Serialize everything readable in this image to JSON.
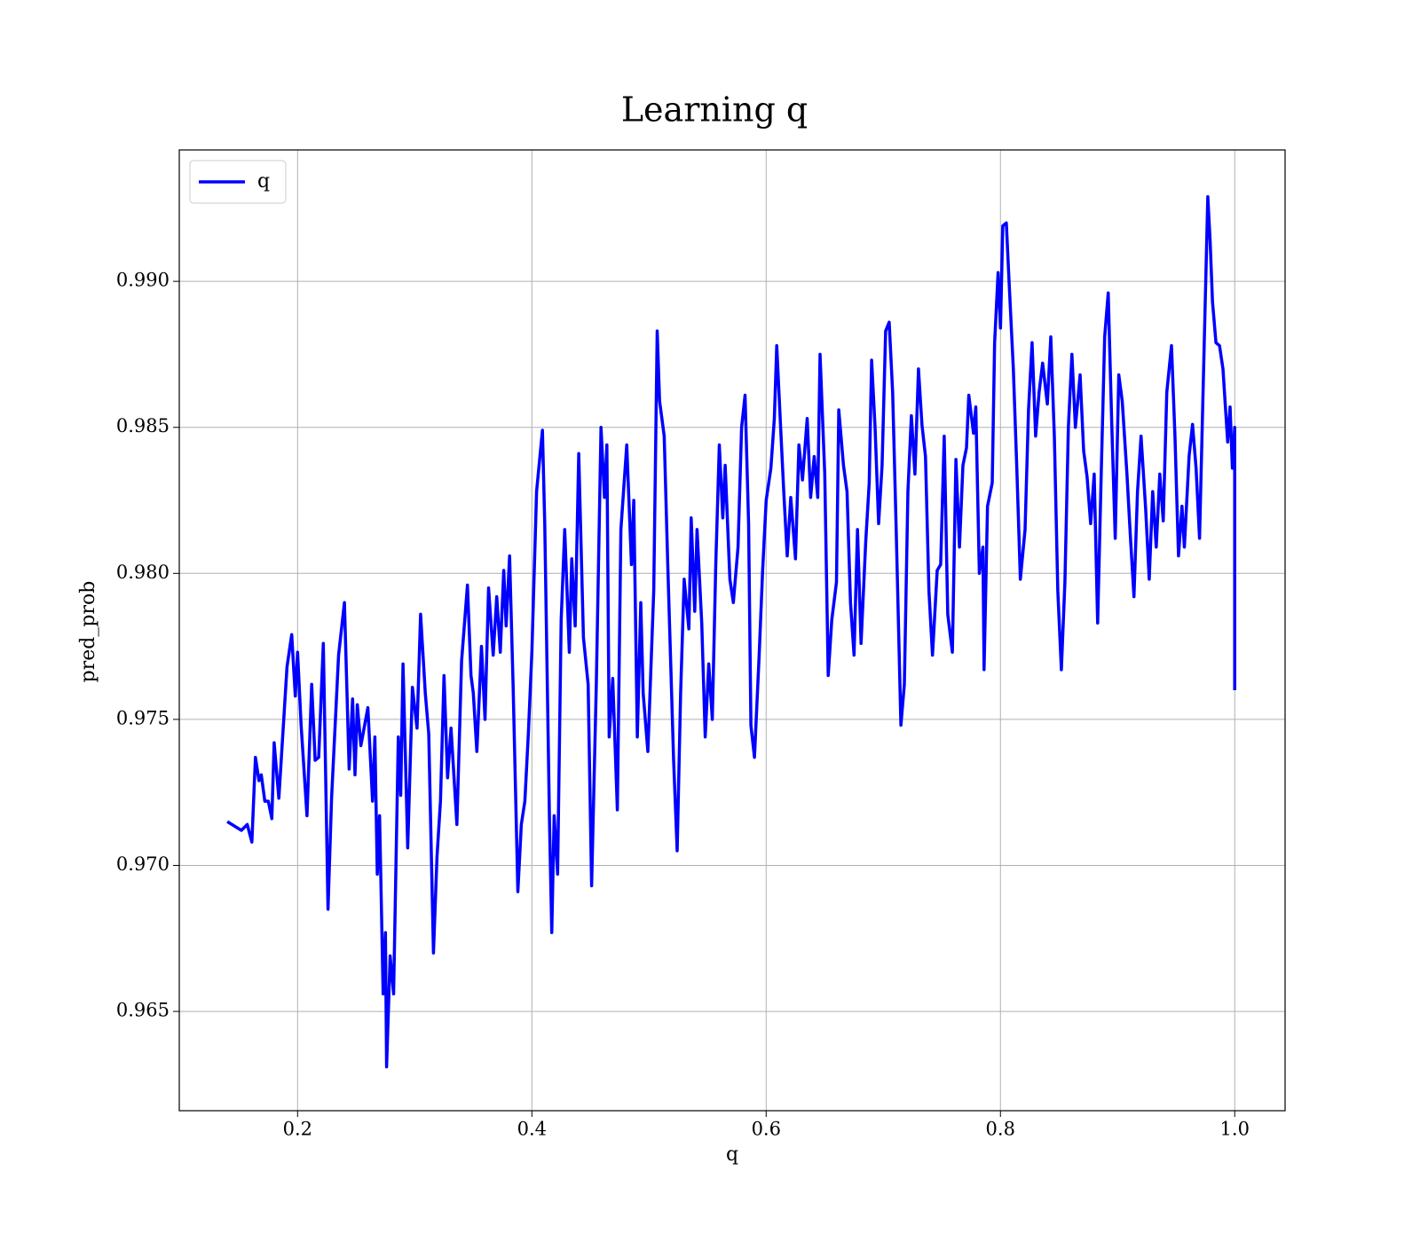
{
  "chart_data": {
    "type": "line",
    "title": "Learning q",
    "x_label": "q",
    "y_label": "pred_prob",
    "xlim": [
      0.099,
      1.043
    ],
    "ylim": [
      0.9616,
      0.9945
    ],
    "xticks": [
      0.2,
      0.4,
      0.6,
      0.8,
      {
        "value": 1,
        "label": "1.0"
      }
    ],
    "yticks": [
      0.965,
      {
        "value": 0.97,
        "label": "0.970"
      },
      0.975,
      {
        "value": 0.98,
        "label": "0.980"
      },
      0.985,
      {
        "value": 0.99,
        "label": "0.990"
      }
    ],
    "grid": true,
    "legend": "upper left",
    "x": [
      0.14,
      0.152,
      0.157,
      0.161,
      0.164,
      0.167,
      0.169,
      0.172,
      0.175,
      0.178,
      0.18,
      0.184,
      0.191,
      0.195,
      0.198,
      0.2,
      0.203,
      0.208,
      0.212,
      0.215,
      0.218,
      0.222,
      0.226,
      0.229,
      0.235,
      0.24,
      0.244,
      0.247,
      0.249,
      0.251,
      0.254,
      0.26,
      0.264,
      0.266,
      0.268,
      0.27,
      0.273,
      0.275,
      0.276,
      0.279,
      0.282,
      0.286,
      0.288,
      0.29,
      0.294,
      0.298,
      0.302,
      0.305,
      0.309,
      0.312,
      0.316,
      0.319,
      0.322,
      0.325,
      0.328,
      0.331,
      0.336,
      0.34,
      0.345,
      0.348,
      0.35,
      0.353,
      0.357,
      0.36,
      0.363,
      0.367,
      0.37,
      0.373,
      0.376,
      0.378,
      0.381,
      0.384,
      0.388,
      0.391,
      0.394,
      0.397,
      0.4,
      0.404,
      0.409,
      0.411,
      0.415,
      0.417,
      0.419,
      0.422,
      0.425,
      0.428,
      0.432,
      0.434,
      0.437,
      0.44,
      0.444,
      0.448,
      0.451,
      0.455,
      0.459,
      0.462,
      0.464,
      0.466,
      0.469,
      0.473,
      0.476,
      0.481,
      0.485,
      0.487,
      0.49,
      0.493,
      0.495,
      0.499,
      0.504,
      0.507,
      0.509,
      0.513,
      0.516,
      0.521,
      0.524,
      0.527,
      0.53,
      0.534,
      0.536,
      0.539,
      0.541,
      0.545,
      0.548,
      0.551,
      0.554,
      0.557,
      0.56,
      0.563,
      0.565,
      0.569,
      0.572,
      0.576,
      0.579,
      0.582,
      0.585,
      0.587,
      0.59,
      0.594,
      0.597,
      0.6,
      0.604,
      0.607,
      0.609,
      0.612,
      0.615,
      0.618,
      0.621,
      0.625,
      0.628,
      0.631,
      0.635,
      0.638,
      0.641,
      0.644,
      0.646,
      0.65,
      0.653,
      0.656,
      0.66,
      0.662,
      0.666,
      0.669,
      0.672,
      0.675,
      0.678,
      0.681,
      0.685,
      0.688,
      0.69,
      0.693,
      0.696,
      0.699,
      0.702,
      0.705,
      0.708,
      0.711,
      0.715,
      0.718,
      0.721,
      0.724,
      0.727,
      0.73,
      0.733,
      0.736,
      0.739,
      0.742,
      0.746,
      0.749,
      0.752,
      0.755,
      0.759,
      0.762,
      0.765,
      0.768,
      0.771,
      0.773,
      0.777,
      0.779,
      0.782,
      0.785,
      0.786,
      0.789,
      0.793,
      0.795,
      0.798,
      0.8,
      0.802,
      0.805,
      0.807,
      0.811,
      0.814,
      0.817,
      0.821,
      0.824,
      0.827,
      0.83,
      0.833,
      0.836,
      0.84,
      0.843,
      0.846,
      0.849,
      0.852,
      0.855,
      0.858,
      0.861,
      0.864,
      0.868,
      0.871,
      0.874,
      0.877,
      0.88,
      0.883,
      0.886,
      0.889,
      0.892,
      0.895,
      0.898,
      0.901,
      0.904,
      0.908,
      0.911,
      0.914,
      0.917,
      0.92,
      0.924,
      0.927,
      0.93,
      0.933,
      0.936,
      0.939,
      0.942,
      0.946,
      0.949,
      0.952,
      0.955,
      0.957,
      0.961,
      0.964,
      0.967,
      0.97,
      0.974,
      0.977,
      0.979,
      0.981,
      0.984,
      0.987,
      0.99,
      0.994,
      0.996,
      0.998,
      1.0,
      1.0
    ],
    "series": [
      {
        "name": "q",
        "color": "#0000ff",
        "values": [
          0.9715,
          0.9712,
          0.9714,
          0.9708,
          0.9737,
          0.9729,
          0.9731,
          0.9722,
          0.9722,
          0.9716,
          0.9742,
          0.9723,
          0.9768,
          0.9779,
          0.9758,
          0.9773,
          0.9748,
          0.9717,
          0.9762,
          0.9736,
          0.9737,
          0.9776,
          0.9685,
          0.9723,
          0.9772,
          0.979,
          0.9733,
          0.9757,
          0.9731,
          0.9755,
          0.9741,
          0.9754,
          0.9722,
          0.9744,
          0.9697,
          0.9717,
          0.9656,
          0.9677,
          0.9631,
          0.9669,
          0.9656,
          0.9744,
          0.9724,
          0.9769,
          0.9706,
          0.9761,
          0.9747,
          0.9786,
          0.9759,
          0.9745,
          0.967,
          0.9703,
          0.9722,
          0.9765,
          0.973,
          0.9747,
          0.9714,
          0.977,
          0.9796,
          0.9765,
          0.9759,
          0.9739,
          0.9775,
          0.975,
          0.9795,
          0.9772,
          0.9792,
          0.9773,
          0.9801,
          0.9782,
          0.9806,
          0.9761,
          0.9691,
          0.9714,
          0.9722,
          0.9745,
          0.9773,
          0.9828,
          0.9849,
          0.9817,
          0.9716,
          0.9677,
          0.9717,
          0.9697,
          0.9784,
          0.9815,
          0.9773,
          0.9805,
          0.9782,
          0.9841,
          0.9778,
          0.9762,
          0.9693,
          0.9762,
          0.985,
          0.9826,
          0.9844,
          0.9744,
          0.9764,
          0.9719,
          0.9815,
          0.9844,
          0.9803,
          0.9825,
          0.9744,
          0.979,
          0.9759,
          0.9739,
          0.9794,
          0.9883,
          0.9859,
          0.9847,
          0.9803,
          0.9736,
          0.9705,
          0.9759,
          0.9798,
          0.9781,
          0.9819,
          0.9787,
          0.9815,
          0.9783,
          0.9744,
          0.9769,
          0.975,
          0.9803,
          0.9844,
          0.9819,
          0.9837,
          0.9798,
          0.979,
          0.9809,
          0.985,
          0.9861,
          0.9817,
          0.9748,
          0.9737,
          0.9772,
          0.9801,
          0.9825,
          0.9836,
          0.9853,
          0.9878,
          0.9853,
          0.9828,
          0.9806,
          0.9826,
          0.9805,
          0.9844,
          0.9832,
          0.9853,
          0.9826,
          0.984,
          0.9826,
          0.9875,
          0.9834,
          0.9765,
          0.9784,
          0.9797,
          0.9856,
          0.9837,
          0.9828,
          0.979,
          0.9772,
          0.9815,
          0.9776,
          0.9811,
          0.9831,
          0.9873,
          0.985,
          0.9817,
          0.9837,
          0.9883,
          0.9886,
          0.9862,
          0.9815,
          0.9748,
          0.9762,
          0.9828,
          0.9854,
          0.9834,
          0.987,
          0.9851,
          0.984,
          0.9794,
          0.9772,
          0.9801,
          0.9803,
          0.9847,
          0.9786,
          0.9773,
          0.9839,
          0.9809,
          0.9837,
          0.9843,
          0.9861,
          0.9848,
          0.9857,
          0.98,
          0.9809,
          0.9767,
          0.9823,
          0.9831,
          0.9879,
          0.9903,
          0.9884,
          0.9919,
          0.992,
          0.9903,
          0.987,
          0.9836,
          0.9798,
          0.9815,
          0.9856,
          0.9879,
          0.9847,
          0.9862,
          0.9872,
          0.9858,
          0.9881,
          0.9847,
          0.9794,
          0.9767,
          0.9797,
          0.985,
          0.9875,
          0.985,
          0.9868,
          0.9842,
          0.9833,
          0.9817,
          0.9834,
          0.9783,
          0.9834,
          0.9881,
          0.9896,
          0.9851,
          0.9812,
          0.9868,
          0.9859,
          0.9834,
          0.9812,
          0.9792,
          0.9828,
          0.9847,
          0.9822,
          0.9798,
          0.9828,
          0.9809,
          0.9834,
          0.9818,
          0.9862,
          0.9878,
          0.9847,
          0.9806,
          0.9823,
          0.9809,
          0.984,
          0.9851,
          0.9836,
          0.9812,
          0.9879,
          0.9929,
          0.9914,
          0.9893,
          0.9879,
          0.9878,
          0.987,
          0.9845,
          0.9857,
          0.9836,
          0.985,
          0.976
        ]
      }
    ]
  }
}
